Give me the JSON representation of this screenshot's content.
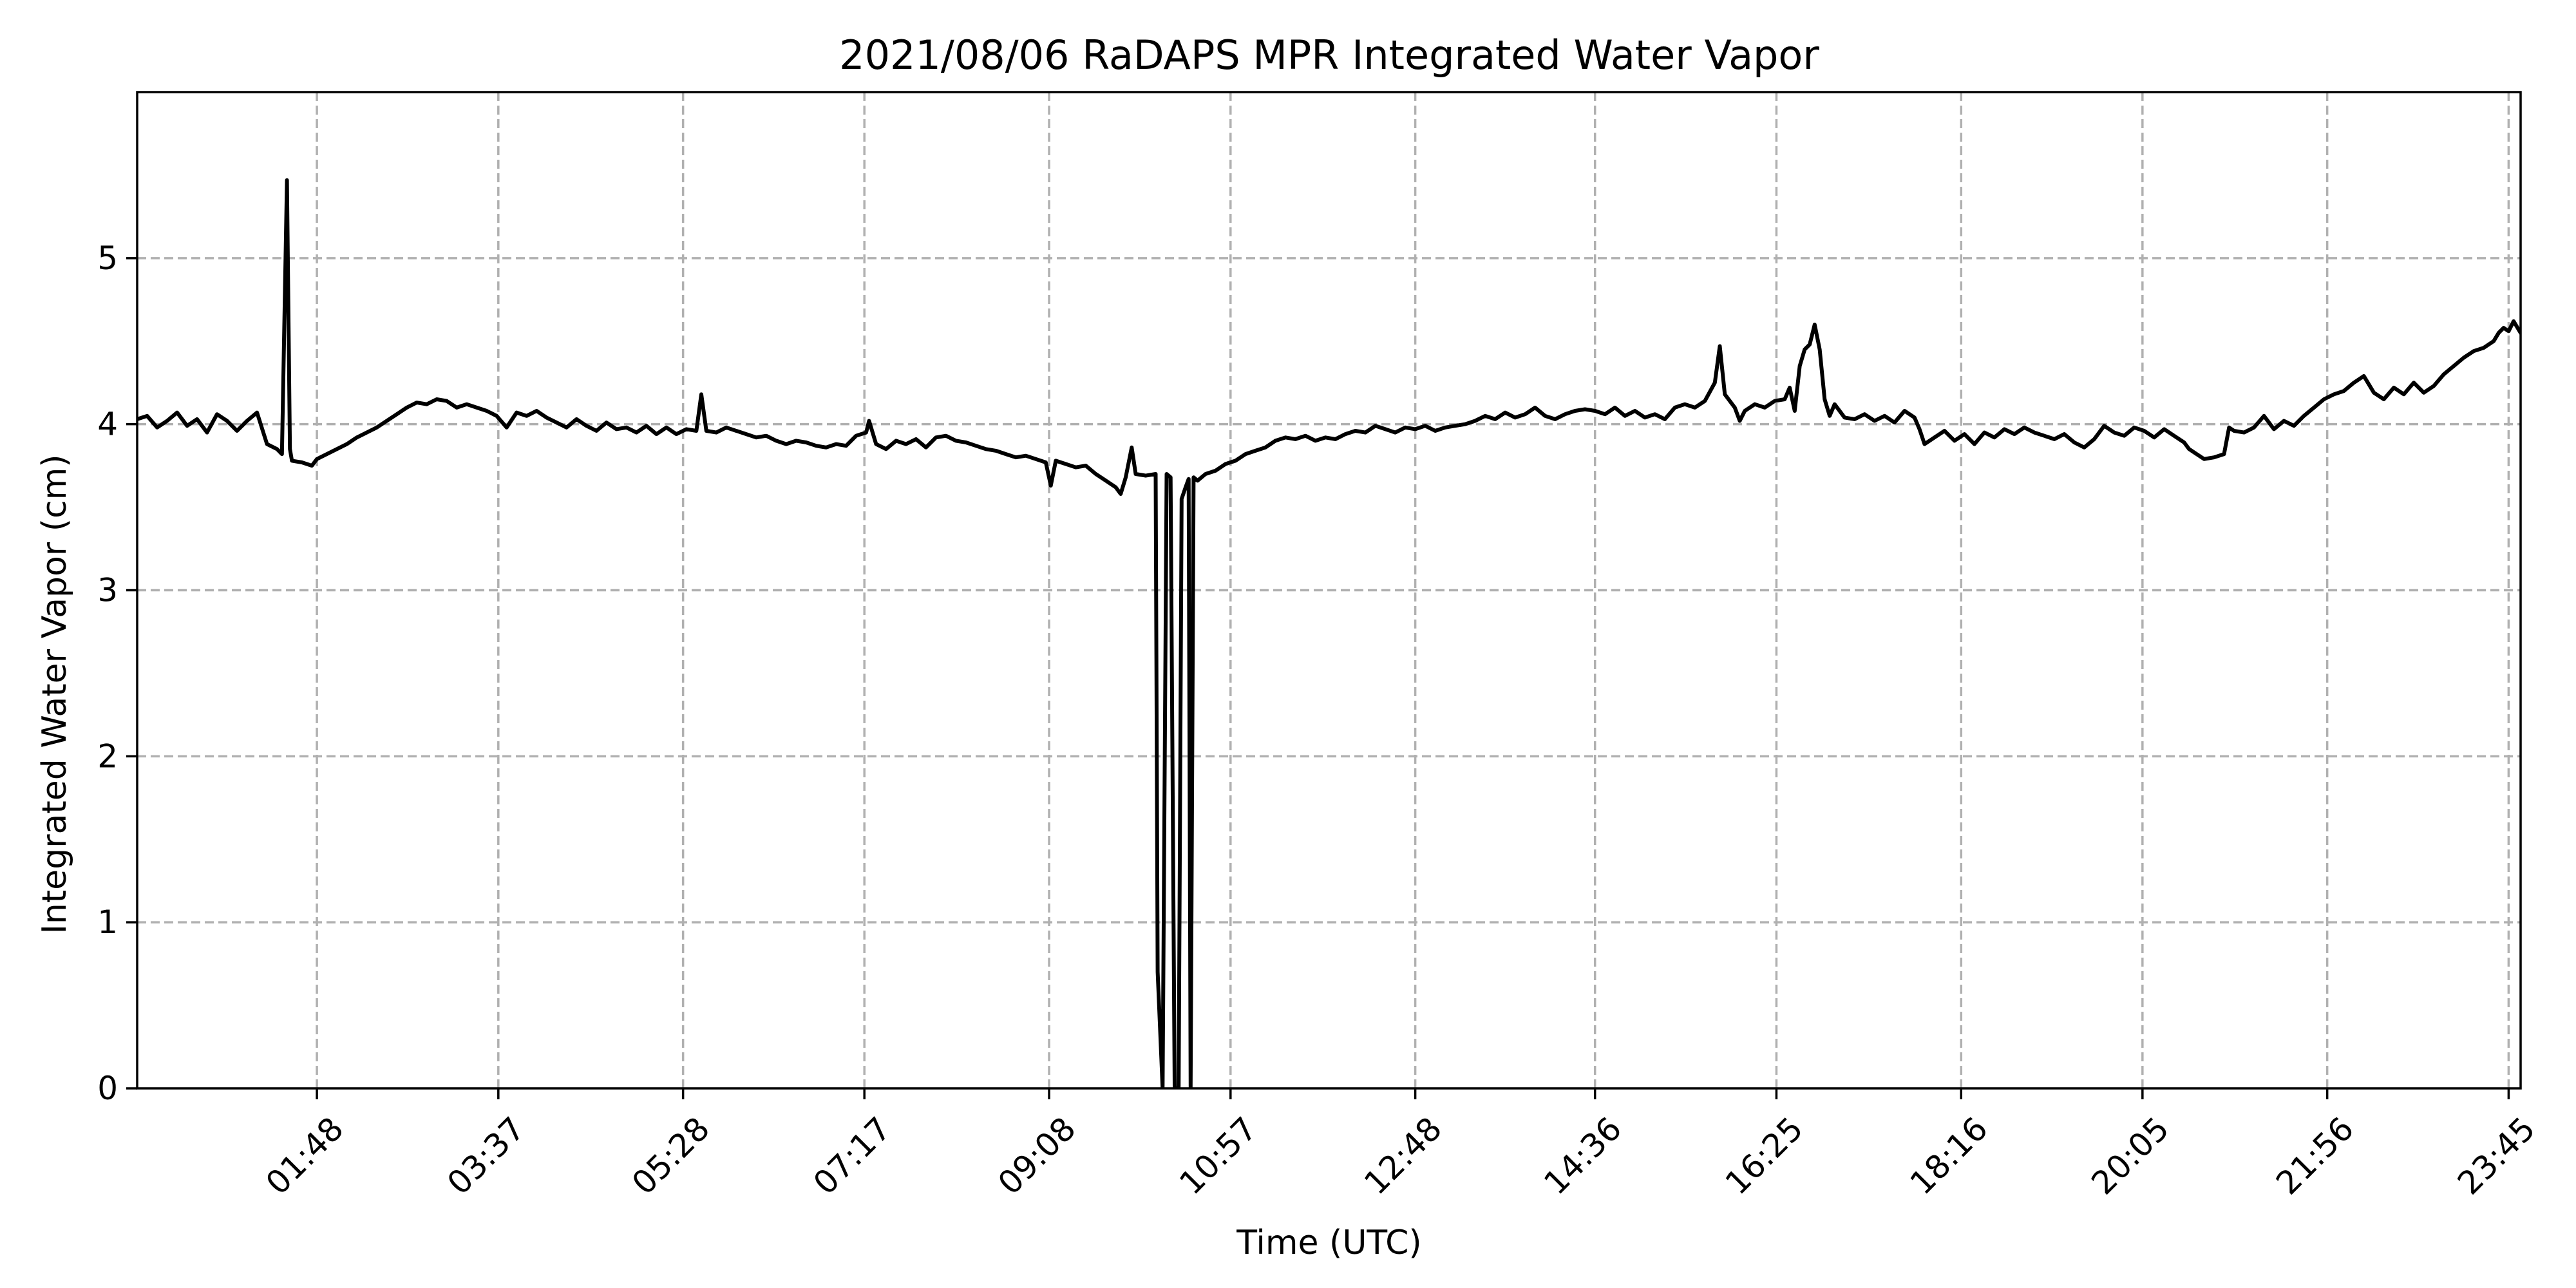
{
  "chart_data": {
    "type": "line",
    "title": "2021/08/06 RaDAPS MPR Integrated Water Vapor",
    "xlabel": "Time (UTC)",
    "ylabel": "Integrated Water Vapor (cm)",
    "x_unit": "hours UTC",
    "xlim": [
      0.0,
      23.87
    ],
    "ylim": [
      0,
      6.0
    ],
    "x_ticks": [
      {
        "value": 1.8,
        "label": "01:48"
      },
      {
        "value": 3.617,
        "label": "03:37"
      },
      {
        "value": 5.467,
        "label": "05:28"
      },
      {
        "value": 7.283,
        "label": "07:17"
      },
      {
        "value": 9.133,
        "label": "09:08"
      },
      {
        "value": 10.95,
        "label": "10:57"
      },
      {
        "value": 12.8,
        "label": "12:48"
      },
      {
        "value": 14.6,
        "label": "14:36"
      },
      {
        "value": 16.417,
        "label": "16:25"
      },
      {
        "value": 18.267,
        "label": "18:16"
      },
      {
        "value": 20.083,
        "label": "20:05"
      },
      {
        "value": 21.933,
        "label": "21:56"
      },
      {
        "value": 23.75,
        "label": "23:45"
      }
    ],
    "y_ticks": [
      0,
      1,
      2,
      3,
      4,
      5
    ],
    "grid": true,
    "line_color": "#000000",
    "series": [
      {
        "values": [
          [
            0.0,
            4.03
          ],
          [
            0.1,
            4.05
          ],
          [
            0.2,
            3.98
          ],
          [
            0.3,
            4.02
          ],
          [
            0.4,
            4.07
          ],
          [
            0.5,
            3.99
          ],
          [
            0.6,
            4.03
          ],
          [
            0.7,
            3.95
          ],
          [
            0.8,
            4.06
          ],
          [
            0.9,
            4.02
          ],
          [
            1.0,
            3.96
          ],
          [
            1.1,
            4.02
          ],
          [
            1.2,
            4.07
          ],
          [
            1.3,
            3.88
          ],
          [
            1.4,
            3.85
          ],
          [
            1.45,
            3.82
          ],
          [
            1.5,
            5.47
          ],
          [
            1.53,
            3.85
          ],
          [
            1.55,
            3.78
          ],
          [
            1.65,
            3.77
          ],
          [
            1.75,
            3.75
          ],
          [
            1.8,
            3.79
          ],
          [
            1.9,
            3.82
          ],
          [
            2.0,
            3.85
          ],
          [
            2.1,
            3.88
          ],
          [
            2.2,
            3.92
          ],
          [
            2.3,
            3.95
          ],
          [
            2.4,
            3.98
          ],
          [
            2.5,
            4.02
          ],
          [
            2.6,
            4.06
          ],
          [
            2.7,
            4.1
          ],
          [
            2.8,
            4.13
          ],
          [
            2.9,
            4.12
          ],
          [
            3.0,
            4.15
          ],
          [
            3.1,
            4.14
          ],
          [
            3.2,
            4.1
          ],
          [
            3.3,
            4.12
          ],
          [
            3.4,
            4.1
          ],
          [
            3.5,
            4.08
          ],
          [
            3.6,
            4.05
          ],
          [
            3.7,
            3.98
          ],
          [
            3.8,
            4.07
          ],
          [
            3.9,
            4.05
          ],
          [
            4.0,
            4.08
          ],
          [
            4.1,
            4.04
          ],
          [
            4.2,
            4.01
          ],
          [
            4.3,
            3.98
          ],
          [
            4.4,
            4.03
          ],
          [
            4.5,
            3.99
          ],
          [
            4.6,
            3.96
          ],
          [
            4.7,
            4.01
          ],
          [
            4.8,
            3.97
          ],
          [
            4.9,
            3.98
          ],
          [
            5.0,
            3.95
          ],
          [
            5.1,
            3.99
          ],
          [
            5.2,
            3.94
          ],
          [
            5.3,
            3.98
          ],
          [
            5.4,
            3.94
          ],
          [
            5.5,
            3.97
          ],
          [
            5.6,
            3.96
          ],
          [
            5.65,
            4.18
          ],
          [
            5.7,
            3.96
          ],
          [
            5.8,
            3.95
          ],
          [
            5.9,
            3.98
          ],
          [
            6.0,
            3.96
          ],
          [
            6.1,
            3.94
          ],
          [
            6.2,
            3.92
          ],
          [
            6.3,
            3.93
          ],
          [
            6.4,
            3.9
          ],
          [
            6.5,
            3.88
          ],
          [
            6.6,
            3.9
          ],
          [
            6.7,
            3.89
          ],
          [
            6.8,
            3.87
          ],
          [
            6.9,
            3.86
          ],
          [
            7.0,
            3.88
          ],
          [
            7.1,
            3.87
          ],
          [
            7.2,
            3.93
          ],
          [
            7.3,
            3.95
          ],
          [
            7.33,
            4.02
          ],
          [
            7.4,
            3.88
          ],
          [
            7.5,
            3.85
          ],
          [
            7.6,
            3.9
          ],
          [
            7.7,
            3.88
          ],
          [
            7.8,
            3.91
          ],
          [
            7.9,
            3.86
          ],
          [
            8.0,
            3.92
          ],
          [
            8.1,
            3.93
          ],
          [
            8.2,
            3.9
          ],
          [
            8.3,
            3.89
          ],
          [
            8.4,
            3.87
          ],
          [
            8.5,
            3.85
          ],
          [
            8.6,
            3.84
          ],
          [
            8.7,
            3.82
          ],
          [
            8.8,
            3.8
          ],
          [
            8.9,
            3.81
          ],
          [
            9.0,
            3.79
          ],
          [
            9.1,
            3.77
          ],
          [
            9.15,
            3.63
          ],
          [
            9.2,
            3.78
          ],
          [
            9.3,
            3.76
          ],
          [
            9.4,
            3.74
          ],
          [
            9.5,
            3.75
          ],
          [
            9.6,
            3.7
          ],
          [
            9.7,
            3.66
          ],
          [
            9.8,
            3.62
          ],
          [
            9.85,
            3.58
          ],
          [
            9.9,
            3.68
          ],
          [
            9.96,
            3.86
          ],
          [
            10.0,
            3.7
          ],
          [
            10.1,
            3.69
          ],
          [
            10.2,
            3.7
          ],
          [
            10.22,
            0.7
          ],
          [
            10.27,
            0.0
          ],
          [
            10.31,
            3.7
          ],
          [
            10.35,
            3.68
          ],
          [
            10.39,
            0.0
          ],
          [
            10.43,
            0.0
          ],
          [
            10.46,
            3.55
          ],
          [
            10.5,
            3.62
          ],
          [
            10.53,
            3.67
          ],
          [
            10.55,
            0.0
          ],
          [
            10.58,
            3.68
          ],
          [
            10.62,
            3.66
          ],
          [
            10.7,
            3.7
          ],
          [
            10.8,
            3.72
          ],
          [
            10.9,
            3.76
          ],
          [
            11.0,
            3.78
          ],
          [
            11.1,
            3.82
          ],
          [
            11.2,
            3.84
          ],
          [
            11.3,
            3.86
          ],
          [
            11.4,
            3.9
          ],
          [
            11.5,
            3.92
          ],
          [
            11.6,
            3.91
          ],
          [
            11.7,
            3.93
          ],
          [
            11.8,
            3.9
          ],
          [
            11.9,
            3.92
          ],
          [
            12.0,
            3.91
          ],
          [
            12.1,
            3.94
          ],
          [
            12.2,
            3.96
          ],
          [
            12.3,
            3.95
          ],
          [
            12.4,
            3.99
          ],
          [
            12.5,
            3.97
          ],
          [
            12.6,
            3.95
          ],
          [
            12.7,
            3.98
          ],
          [
            12.8,
            3.97
          ],
          [
            12.9,
            3.99
          ],
          [
            13.0,
            3.96
          ],
          [
            13.1,
            3.98
          ],
          [
            13.2,
            3.99
          ],
          [
            13.3,
            4.0
          ],
          [
            13.4,
            4.02
          ],
          [
            13.5,
            4.05
          ],
          [
            13.6,
            4.03
          ],
          [
            13.7,
            4.07
          ],
          [
            13.8,
            4.04
          ],
          [
            13.9,
            4.06
          ],
          [
            14.0,
            4.1
          ],
          [
            14.1,
            4.05
          ],
          [
            14.2,
            4.03
          ],
          [
            14.3,
            4.06
          ],
          [
            14.4,
            4.08
          ],
          [
            14.5,
            4.09
          ],
          [
            14.6,
            4.08
          ],
          [
            14.7,
            4.06
          ],
          [
            14.8,
            4.1
          ],
          [
            14.9,
            4.05
          ],
          [
            15.0,
            4.08
          ],
          [
            15.1,
            4.04
          ],
          [
            15.2,
            4.06
          ],
          [
            15.3,
            4.03
          ],
          [
            15.4,
            4.1
          ],
          [
            15.5,
            4.12
          ],
          [
            15.6,
            4.1
          ],
          [
            15.7,
            4.14
          ],
          [
            15.8,
            4.25
          ],
          [
            15.85,
            4.47
          ],
          [
            15.9,
            4.18
          ],
          [
            16.0,
            4.1
          ],
          [
            16.05,
            4.02
          ],
          [
            16.1,
            4.08
          ],
          [
            16.2,
            4.12
          ],
          [
            16.3,
            4.1
          ],
          [
            16.4,
            4.14
          ],
          [
            16.5,
            4.15
          ],
          [
            16.55,
            4.22
          ],
          [
            16.6,
            4.08
          ],
          [
            16.65,
            4.35
          ],
          [
            16.7,
            4.45
          ],
          [
            16.75,
            4.48
          ],
          [
            16.8,
            4.6
          ],
          [
            16.85,
            4.45
          ],
          [
            16.9,
            4.15
          ],
          [
            16.95,
            4.05
          ],
          [
            17.0,
            4.12
          ],
          [
            17.1,
            4.04
          ],
          [
            17.2,
            4.03
          ],
          [
            17.3,
            4.06
          ],
          [
            17.4,
            4.02
          ],
          [
            17.5,
            4.05
          ],
          [
            17.6,
            4.01
          ],
          [
            17.7,
            4.08
          ],
          [
            17.8,
            4.04
          ],
          [
            17.85,
            3.97
          ],
          [
            17.9,
            3.88
          ],
          [
            18.0,
            3.92
          ],
          [
            18.1,
            3.96
          ],
          [
            18.2,
            3.9
          ],
          [
            18.3,
            3.94
          ],
          [
            18.4,
            3.88
          ],
          [
            18.5,
            3.95
          ],
          [
            18.6,
            3.92
          ],
          [
            18.7,
            3.97
          ],
          [
            18.8,
            3.94
          ],
          [
            18.9,
            3.98
          ],
          [
            19.0,
            3.95
          ],
          [
            19.1,
            3.93
          ],
          [
            19.2,
            3.91
          ],
          [
            19.3,
            3.94
          ],
          [
            19.4,
            3.89
          ],
          [
            19.5,
            3.86
          ],
          [
            19.6,
            3.91
          ],
          [
            19.7,
            3.99
          ],
          [
            19.8,
            3.95
          ],
          [
            19.9,
            3.93
          ],
          [
            20.0,
            3.98
          ],
          [
            20.1,
            3.96
          ],
          [
            20.2,
            3.92
          ],
          [
            20.3,
            3.97
          ],
          [
            20.4,
            3.93
          ],
          [
            20.5,
            3.89
          ],
          [
            20.55,
            3.85
          ],
          [
            20.6,
            3.83
          ],
          [
            20.7,
            3.79
          ],
          [
            20.8,
            3.8
          ],
          [
            20.9,
            3.82
          ],
          [
            20.95,
            3.98
          ],
          [
            21.0,
            3.96
          ],
          [
            21.1,
            3.95
          ],
          [
            21.2,
            3.98
          ],
          [
            21.3,
            4.05
          ],
          [
            21.4,
            3.97
          ],
          [
            21.5,
            4.02
          ],
          [
            21.6,
            3.99
          ],
          [
            21.7,
            4.05
          ],
          [
            21.8,
            4.1
          ],
          [
            21.9,
            4.15
          ],
          [
            22.0,
            4.18
          ],
          [
            22.1,
            4.2
          ],
          [
            22.2,
            4.25
          ],
          [
            22.3,
            4.29
          ],
          [
            22.4,
            4.19
          ],
          [
            22.5,
            4.15
          ],
          [
            22.6,
            4.22
          ],
          [
            22.7,
            4.18
          ],
          [
            22.8,
            4.25
          ],
          [
            22.9,
            4.19
          ],
          [
            23.0,
            4.23
          ],
          [
            23.1,
            4.3
          ],
          [
            23.2,
            4.35
          ],
          [
            23.3,
            4.4
          ],
          [
            23.4,
            4.44
          ],
          [
            23.5,
            4.46
          ],
          [
            23.6,
            4.5
          ],
          [
            23.65,
            4.55
          ],
          [
            23.7,
            4.58
          ],
          [
            23.75,
            4.56
          ],
          [
            23.8,
            4.62
          ],
          [
            23.87,
            4.55
          ]
        ]
      }
    ]
  }
}
